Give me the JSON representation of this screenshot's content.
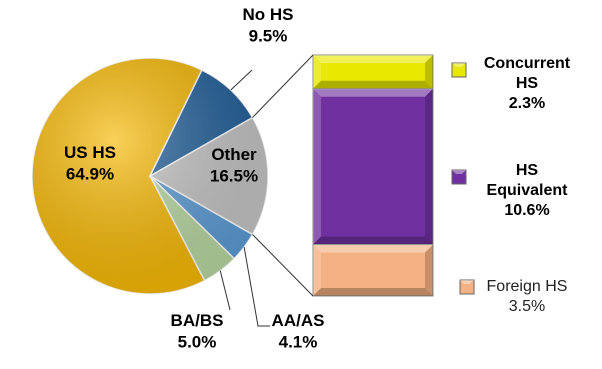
{
  "chart_data": {
    "type": "pie",
    "subtype": "bar-of-pie",
    "slices": [
      {
        "key": "us_hs",
        "name": "US HS",
        "value": 64.9,
        "label_value": "64.9%",
        "color": "#f7b800"
      },
      {
        "key": "no_hs",
        "name": "No HS",
        "value": 9.5,
        "label_value": "9.5%",
        "color": "#1f5e99"
      },
      {
        "key": "other",
        "name": "Other",
        "value": 16.5,
        "label_value": "16.5%",
        "color": "#c4c4c4"
      },
      {
        "key": "aa_as",
        "name": "AA/AS",
        "value": 4.1,
        "label_value": "4.1%",
        "color": "#5b9bd5"
      },
      {
        "key": "ba_bs",
        "name": "BA/BS",
        "value": 5.0,
        "label_value": "5.0%",
        "color": "#b7d7a0"
      }
    ],
    "breakdown_of": "Other",
    "breakdown": [
      {
        "key": "concurrent",
        "name_lines": [
          "Concurrent",
          "HS"
        ],
        "value": 2.3,
        "label_value": "2.3%",
        "color": "#e8e800"
      },
      {
        "key": "equivalent",
        "name_lines": [
          "HS",
          "Equivalent"
        ],
        "value": 10.6,
        "label_value": "10.6%",
        "color": "#7030a0"
      },
      {
        "key": "foreign",
        "name_lines": [
          "Foreign HS"
        ],
        "value": 3.5,
        "label_value": "3.5%",
        "color": "#f4b183"
      }
    ]
  }
}
